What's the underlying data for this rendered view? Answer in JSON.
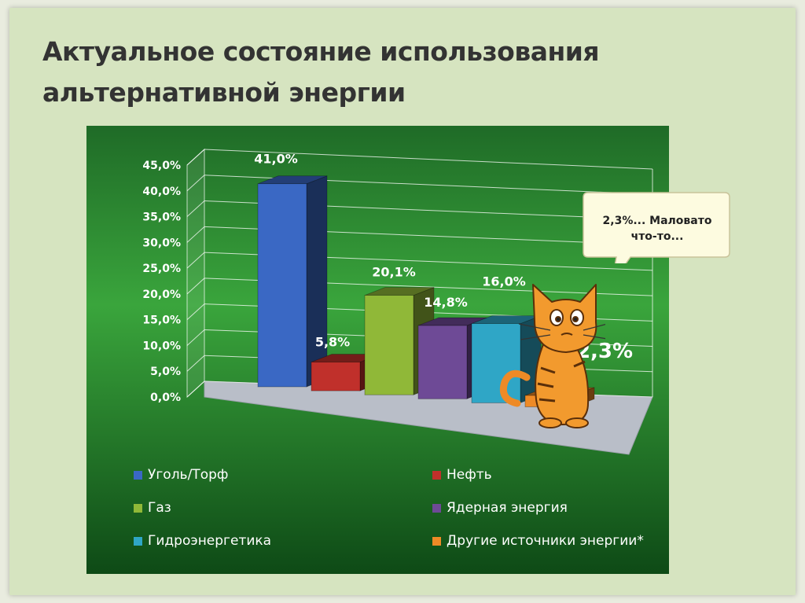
{
  "slide": {
    "title_line1": "Актуальное состояние использования",
    "title_line2": "альтернативной энергии"
  },
  "chart_data": {
    "type": "bar",
    "style": "3d-column",
    "categories": [
      "Уголь/Торф",
      "Нефть",
      "Газ",
      "Ядерная энергия",
      "Гидроэнергетика",
      "Другие источники энергии*"
    ],
    "values": [
      41.0,
      5.8,
      20.1,
      14.8,
      16.0,
      2.3
    ],
    "data_labels": [
      "41,0%",
      "5,8%",
      "20,1%",
      "14,8%",
      "16,0%",
      "2,3%"
    ],
    "colors": [
      "#3a68c4",
      "#c0302b",
      "#90b838",
      "#6e4a96",
      "#2fa6c6",
      "#ee8a26"
    ],
    "y_ticks": [
      "0,0%",
      "5,0%",
      "10,0%",
      "15,0%",
      "20,0%",
      "25,0%",
      "30,0%",
      "35,0%",
      "40,0%",
      "45,0%"
    ],
    "ylim": [
      0,
      45
    ],
    "grid": true,
    "legend_position": "bottom",
    "title": "",
    "xlabel": "",
    "ylabel": ""
  },
  "callout": {
    "line1": "2,3%... Маловато",
    "line2": "что-то..."
  },
  "theme": {
    "panel_top": "#1f6b27",
    "panel_mid": "#3aa53c",
    "panel_bottom": "#0e4a16"
  }
}
